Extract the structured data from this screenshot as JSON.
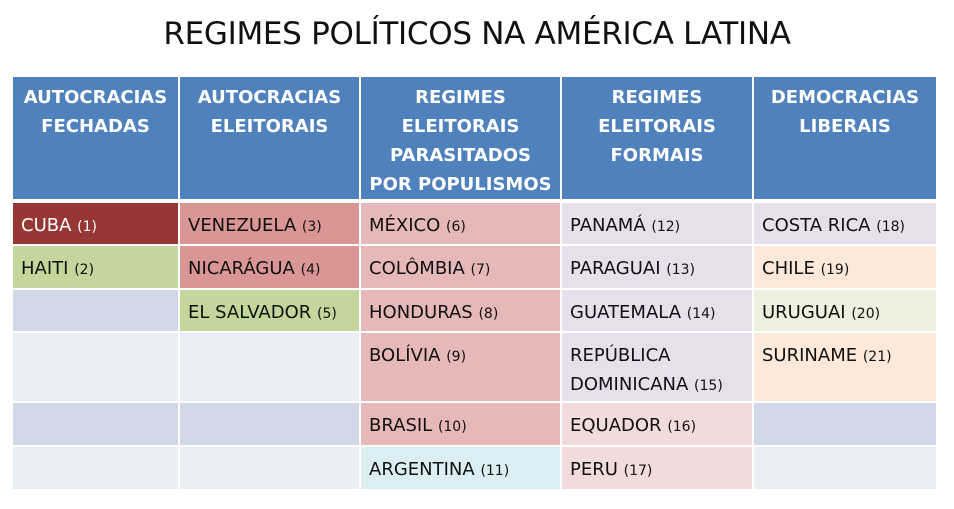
{
  "title": "REGIMES POLÍTICOS NA AMÉRICA LATINA",
  "columns": [
    {
      "label": "AUTOCRACIAS FECHADAS"
    },
    {
      "label": "AUTOCRACIAS ELEITORAIS"
    },
    {
      "label": "REGIMES ELEITORAIS PARASITADOS POR POPULISMOS"
    },
    {
      "label": "REGIMES ELEITORAIS FORMAIS"
    },
    {
      "label": "DEMOCRACIAS LIBERAIS"
    }
  ],
  "rows": [
    [
      {
        "name": "CUBA",
        "num": "(1)",
        "color": "#963734",
        "text_color": "#ffffff"
      },
      {
        "name": "VENEZUELA",
        "num": "(3)",
        "color": "#d99694"
      },
      {
        "name": "MÉXICO",
        "num": "(6)",
        "color": "#e6b9b8"
      },
      {
        "name": "PANAMÁ",
        "num": "(12)",
        "color": "#e5e0ec"
      },
      {
        "name": "COSTA RICA",
        "num": "(18)",
        "color": "#e5e0ec"
      }
    ],
    [
      {
        "name": "HAITI",
        "num": "(2)",
        "color": "#c3d69b"
      },
      {
        "name": "NICARÁGUA",
        "num": "(4)",
        "color": "#d99694"
      },
      {
        "name": "COLÔMBIA",
        "num": "(7)",
        "color": "#e6b9b8"
      },
      {
        "name": "PARAGUAI",
        "num": "(13)",
        "color": "#e5e0ec"
      },
      {
        "name": "CHILE",
        "num": "(19)",
        "color": "#fde9d9"
      }
    ],
    [
      {
        "name": "",
        "num": "",
        "color": "#d0d8e8"
      },
      {
        "name": "EL SALVADOR",
        "num": "(5)",
        "color": "#c3d69b"
      },
      {
        "name": "HONDURAS",
        "num": "(8)",
        "color": "#e6b9b8"
      },
      {
        "name": "GUATEMALA",
        "num": "(14)",
        "color": "#e5e0ec"
      },
      {
        "name": "URUGUAI",
        "num": "(20)",
        "color": "#ebf1de"
      }
    ],
    [
      {
        "name": "",
        "num": "",
        "color": "#e9edf4"
      },
      {
        "name": "",
        "num": "",
        "color": "#e9edf4"
      },
      {
        "name": "BOLÍVIA",
        "num": "(9)",
        "color": "#e6b9b8"
      },
      {
        "name_line1": "REPÚBLICA",
        "name": "DOMINICANA",
        "num": "(15)",
        "color": "#e5e0ec"
      },
      {
        "name": "SURINAME",
        "num": "(21)",
        "color": "#fde9d9"
      }
    ],
    [
      {
        "name": "",
        "num": "",
        "color": "#d0d8e8"
      },
      {
        "name": "",
        "num": "",
        "color": "#d0d8e8"
      },
      {
        "name": "BRASIL",
        "num": "(10)",
        "color": "#e6b9b8"
      },
      {
        "name": "EQUADOR",
        "num": "(16)",
        "color": "#f2dcdb"
      },
      {
        "name": "",
        "num": "",
        "color": "#d0d8e8"
      }
    ],
    [
      {
        "name": "",
        "num": "",
        "color": "#e9edf4"
      },
      {
        "name": "",
        "num": "",
        "color": "#e9edf4"
      },
      {
        "name": "ARGENTINA",
        "num": "(11)",
        "color": "#dbeef4"
      },
      {
        "name": "PERU",
        "num": "(17)",
        "color": "#f2dcdb"
      },
      {
        "name": "",
        "num": "",
        "color": "#e9edf4"
      }
    ]
  ],
  "header_color": "#4f81bd"
}
